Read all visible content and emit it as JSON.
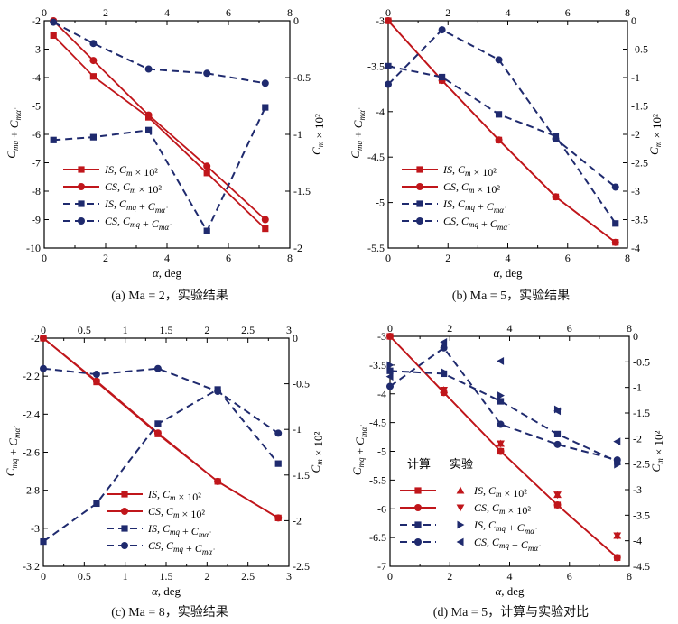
{
  "colors": {
    "red": "#c0161b",
    "blue": "#1f2a6e",
    "axis": "#000000"
  },
  "chart_data": [
    {
      "type": "line",
      "caption": "(a) Ma = 2，实验结果",
      "xlabel": "α, deg",
      "ylabel_left": "C_mq + C_mα̇",
      "ylabel_right": "C_m × 10²",
      "x_range": [
        0,
        8
      ],
      "y_left_range": [
        -10,
        -2
      ],
      "y_right_range": [
        -2,
        0
      ],
      "x_ticks": [
        "0",
        "2",
        "4",
        "6",
        "8"
      ],
      "y_left_ticks": [
        "-2",
        "-3",
        "-4",
        "-5",
        "-6",
        "-7",
        "-8",
        "-9",
        "-10"
      ],
      "y_right_ticks": [
        "0",
        "-0.5",
        "-1",
        "-1.5",
        "-2"
      ],
      "legend": [
        "IS, C_m × 10²",
        "CS, C_m × 10²",
        "IS, C_mq + C_mα̇",
        "CS, C_mq + C_mα̇"
      ],
      "series": [
        {
          "name": "IS, C_m × 10²",
          "axis": "right",
          "marker": "square",
          "color": "red",
          "dash": false,
          "x": [
            0.3,
            1.6,
            3.4,
            5.3,
            7.2
          ],
          "y": [
            -0.13,
            -0.49,
            -0.85,
            -1.34,
            -1.83
          ]
        },
        {
          "name": "CS, C_m × 10²",
          "axis": "right",
          "marker": "circle",
          "color": "red",
          "dash": false,
          "x": [
            0.3,
            1.6,
            3.4,
            5.3,
            7.2
          ],
          "y": [
            0,
            -0.35,
            -0.83,
            -1.28,
            -1.75
          ]
        },
        {
          "name": "IS, C_mq + C_mα̇",
          "axis": "left",
          "marker": "square",
          "color": "blue",
          "dash": true,
          "x": [
            0.3,
            1.6,
            3.4,
            5.3,
            7.2
          ],
          "y": [
            -6.2,
            -6.1,
            -5.85,
            -9.4,
            -5.05
          ]
        },
        {
          "name": "CS, C_mq + C_mα̇",
          "axis": "left",
          "marker": "circle",
          "color": "blue",
          "dash": true,
          "x": [
            0.3,
            1.6,
            3.4,
            5.3,
            7.2
          ],
          "y": [
            -2.05,
            -2.8,
            -3.7,
            -3.85,
            -4.2
          ]
        }
      ]
    },
    {
      "type": "line",
      "caption": "(b) Ma = 5，实验结果",
      "xlabel": "α, deg",
      "ylabel_left": "C_mq + C_mα̇",
      "ylabel_right": "C_m × 10²",
      "x_range": [
        0,
        8
      ],
      "y_left_range": [
        -5.5,
        -3
      ],
      "y_right_range": [
        -4,
        0
      ],
      "x_ticks": [
        "0",
        "2",
        "4",
        "6",
        "8"
      ],
      "y_left_ticks": [
        "-3",
        "-3.5",
        "-4",
        "-4.5",
        "-5",
        "-5.5"
      ],
      "y_right_ticks": [
        "0",
        "-0.5",
        "-1",
        "-1.5",
        "-2",
        "-2.5",
        "-3",
        "-3.5",
        "-4"
      ],
      "legend": [
        "IS, C_m × 10²",
        "CS, C_m × 10²",
        "IS, C_mq + C_mα̇",
        "CS, C_mq + C_mα̇"
      ],
      "series": [
        {
          "name": "IS, C_m × 10²",
          "axis": "right",
          "marker": "square",
          "color": "red",
          "dash": false,
          "x": [
            0,
            1.8,
            3.7,
            5.6,
            7.6
          ],
          "y": [
            0,
            -1.05,
            -2.1,
            -3.1,
            -3.9
          ]
        },
        {
          "name": "CS, C_m × 10²",
          "axis": "right",
          "marker": "circle",
          "color": "red",
          "dash": false,
          "x": [
            0,
            1.8,
            3.7,
            5.6,
            7.6
          ],
          "y": [
            0,
            -1.05,
            -2.1,
            -3.1,
            -3.9
          ]
        },
        {
          "name": "IS, C_mq + C_mα̇",
          "axis": "left",
          "marker": "square",
          "color": "blue",
          "dash": true,
          "x": [
            0,
            1.8,
            3.7,
            5.6,
            7.6
          ],
          "y": [
            -3.5,
            -3.62,
            -4.03,
            -4.27,
            -5.23
          ]
        },
        {
          "name": "CS, C_mq + C_mα̇",
          "axis": "left",
          "marker": "circle",
          "color": "blue",
          "dash": true,
          "x": [
            0,
            1.8,
            3.7,
            5.6,
            7.6
          ],
          "y": [
            -3.7,
            -3.1,
            -3.43,
            -4.3,
            -4.83
          ]
        }
      ]
    },
    {
      "type": "line",
      "caption": "(c) Ma = 8，实验结果",
      "xlabel": "α, deg",
      "ylabel_left": "C_mq + C_mα̇",
      "ylabel_right": "C_m × 10²",
      "x_range": [
        0,
        3
      ],
      "y_left_range": [
        -3.2,
        -2
      ],
      "y_right_range": [
        -2.5,
        0
      ],
      "x_ticks": [
        "0",
        "0.5",
        "1",
        "1.5",
        "2",
        "2.5",
        "3"
      ],
      "y_left_ticks": [
        "-2",
        "-2.2",
        "-2.4",
        "-2.6",
        "-2.8",
        "-3",
        "-3.2"
      ],
      "y_right_ticks": [
        "0",
        "-0.5",
        "-1",
        "-1.5",
        "-2",
        "-2.5"
      ],
      "legend": [
        "IS, C_m × 10²",
        "CS, C_m × 10²",
        "IS, C_mq + C_mα̇",
        "CS, C_mq + C_mα̇"
      ],
      "series": [
        {
          "name": "IS, C_m × 10²",
          "axis": "right",
          "marker": "square",
          "color": "red",
          "dash": false,
          "x": [
            0,
            0.65,
            1.4,
            2.13,
            2.87
          ],
          "y": [
            0,
            -0.48,
            -1.05,
            -1.57,
            -1.97
          ]
        },
        {
          "name": "CS, C_m × 10²",
          "axis": "right",
          "marker": "circle",
          "color": "red",
          "dash": false,
          "x": [
            0,
            0.65,
            1.4,
            2.13,
            2.87
          ],
          "y": [
            0,
            -0.47,
            -1.04,
            -1.57,
            -1.97
          ]
        },
        {
          "name": "IS, C_mq + C_mα̇",
          "axis": "left",
          "marker": "square",
          "color": "blue",
          "dash": true,
          "x": [
            0,
            0.65,
            1.4,
            2.13,
            2.87
          ],
          "y": [
            -3.07,
            -2.87,
            -2.45,
            -2.27,
            -2.66
          ]
        },
        {
          "name": "CS, C_mq + C_mα̇",
          "axis": "left",
          "marker": "circle",
          "color": "blue",
          "dash": true,
          "x": [
            0,
            0.65,
            1.4,
            2.13,
            2.87
          ],
          "y": [
            -2.16,
            -2.19,
            -2.16,
            -2.28,
            -2.5
          ]
        }
      ]
    },
    {
      "type": "line",
      "caption": "(d) Ma = 5，计算与实验对比",
      "xlabel": "α, deg",
      "ylabel_left": "C_mq + C_mα̇",
      "ylabel_right": "C_m × 10²",
      "x_range": [
        0,
        8
      ],
      "y_left_range": [
        -7,
        -3
      ],
      "y_right_range": [
        -4.5,
        0
      ],
      "x_ticks": [
        "0",
        "2",
        "4",
        "6",
        "8"
      ],
      "y_left_ticks": [
        "-3",
        "-3.5",
        "-4",
        "-4.5",
        "-5",
        "-5.5",
        "-6",
        "-6.5",
        "-7"
      ],
      "y_right_ticks": [
        "0",
        "-0.5",
        "-1",
        "-1.5",
        "-2",
        "-2.5",
        "-3",
        "-3.5",
        "-4",
        "-4.5"
      ],
      "legend_header_calc": "计算",
      "legend_header_exp": "实验",
      "legend": [
        "IS, C_m × 10²",
        "CS, C_m × 10²",
        "IS, C_mq + C_mα̇",
        "CS, C_mq + C_mα̇"
      ],
      "series": [
        {
          "name": "IS, C_m × 10² (计算)",
          "axis": "right",
          "marker": "square",
          "color": "red",
          "dash": false,
          "x": [
            0,
            1.8,
            3.7,
            5.6,
            7.6
          ],
          "y": [
            0,
            -1.1,
            -2.25,
            -3.3,
            -4.33
          ]
        },
        {
          "name": "CS, C_m × 10² (计算)",
          "axis": "right",
          "marker": "circle",
          "color": "red",
          "dash": false,
          "x": [
            0,
            1.8,
            3.7,
            5.6,
            7.6
          ],
          "y": [
            0,
            -1.1,
            -2.25,
            -3.3,
            -4.33
          ]
        },
        {
          "name": "IS, C_mq + C_mα̇ (计算)",
          "axis": "left",
          "marker": "square",
          "color": "blue",
          "dash": true,
          "x": [
            0,
            1.8,
            3.7,
            5.6,
            7.6
          ],
          "y": [
            -3.6,
            -3.65,
            -4.13,
            -4.7,
            -5.18
          ]
        },
        {
          "name": "CS, C_mq + C_mα̇ (计算)",
          "axis": "left",
          "marker": "circle",
          "color": "blue",
          "dash": true,
          "x": [
            0,
            1.8,
            3.7,
            5.6,
            7.6
          ],
          "y": [
            -3.87,
            -3.2,
            -4.53,
            -4.88,
            -5.15
          ]
        },
        {
          "name": "IS, C_m × 10² (实验)",
          "axis": "right",
          "marker": "tri-up",
          "color": "red",
          "dash": null,
          "x": [
            1.8,
            3.7,
            5.6,
            7.6
          ],
          "y": [
            -1.05,
            -2.1,
            -3.1,
            -3.9
          ]
        },
        {
          "name": "CS, C_m × 10² (实验)",
          "axis": "right",
          "marker": "tri-down",
          "color": "red",
          "dash": null,
          "x": [
            1.8,
            3.7,
            5.6,
            7.6
          ],
          "y": [
            -1.05,
            -2.1,
            -3.1,
            -3.9
          ]
        },
        {
          "name": "IS, C_mq + C_mα̇ (实验)",
          "axis": "left",
          "marker": "tri-right",
          "color": "blue",
          "dash": null,
          "x": [
            0,
            1.8,
            3.7,
            5.6,
            7.6
          ],
          "y": [
            -3.5,
            -3.62,
            -4.03,
            -4.27,
            -5.23
          ]
        },
        {
          "name": "CS, C_mq + C_mα̇ (实验)",
          "axis": "left",
          "marker": "tri-left",
          "color": "blue",
          "dash": null,
          "x": [
            0,
            1.8,
            3.7,
            5.6,
            7.6
          ],
          "y": [
            -3.7,
            -3.1,
            -3.43,
            -4.3,
            -4.83
          ]
        }
      ]
    }
  ]
}
